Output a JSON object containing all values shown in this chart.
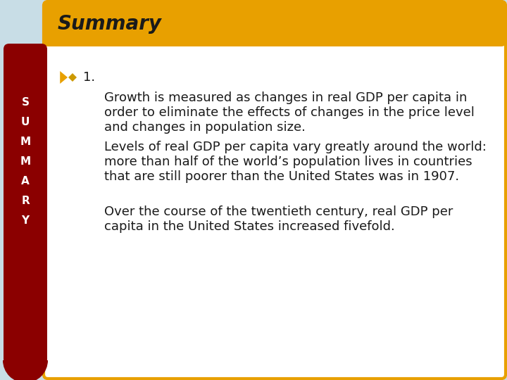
{
  "title": "Summary",
  "title_color": "#1a1a1a",
  "title_bg_color": "#E8A000",
  "title_font_size": 20,
  "background_color": "#C8DDE6",
  "content_bg_color": "#FFFFFF",
  "sidebar_color": "#8B0000",
  "sidebar_text": [
    "S",
    "U",
    "M",
    "M",
    "A",
    "R",
    "Y"
  ],
  "sidebar_text_color": "#FFFFFF",
  "arrow_color": "#E8A000",
  "dot_color": "#CC9900",
  "item_number": "1.",
  "paragraph1_line1": "Growth is measured as changes in real GDP per capita in",
  "paragraph1_line2": "order to eliminate the effects of changes in the price level",
  "paragraph1_line3": "and changes in population size.",
  "paragraph2_line1": "Levels of real GDP per capita vary greatly around the world:",
  "paragraph2_line2": "more than half of the world’s population lives in countries",
  "paragraph2_line3": "that are still poorer than the United States was in 1907.",
  "paragraph3_line1": "Over the course of the twentieth century, real GDP per",
  "paragraph3_line2": "capita in the United States increased fivefold.",
  "text_color": "#1a1a1a",
  "text_font_size": 13,
  "border_color": "#E8A000",
  "border_width": 3
}
